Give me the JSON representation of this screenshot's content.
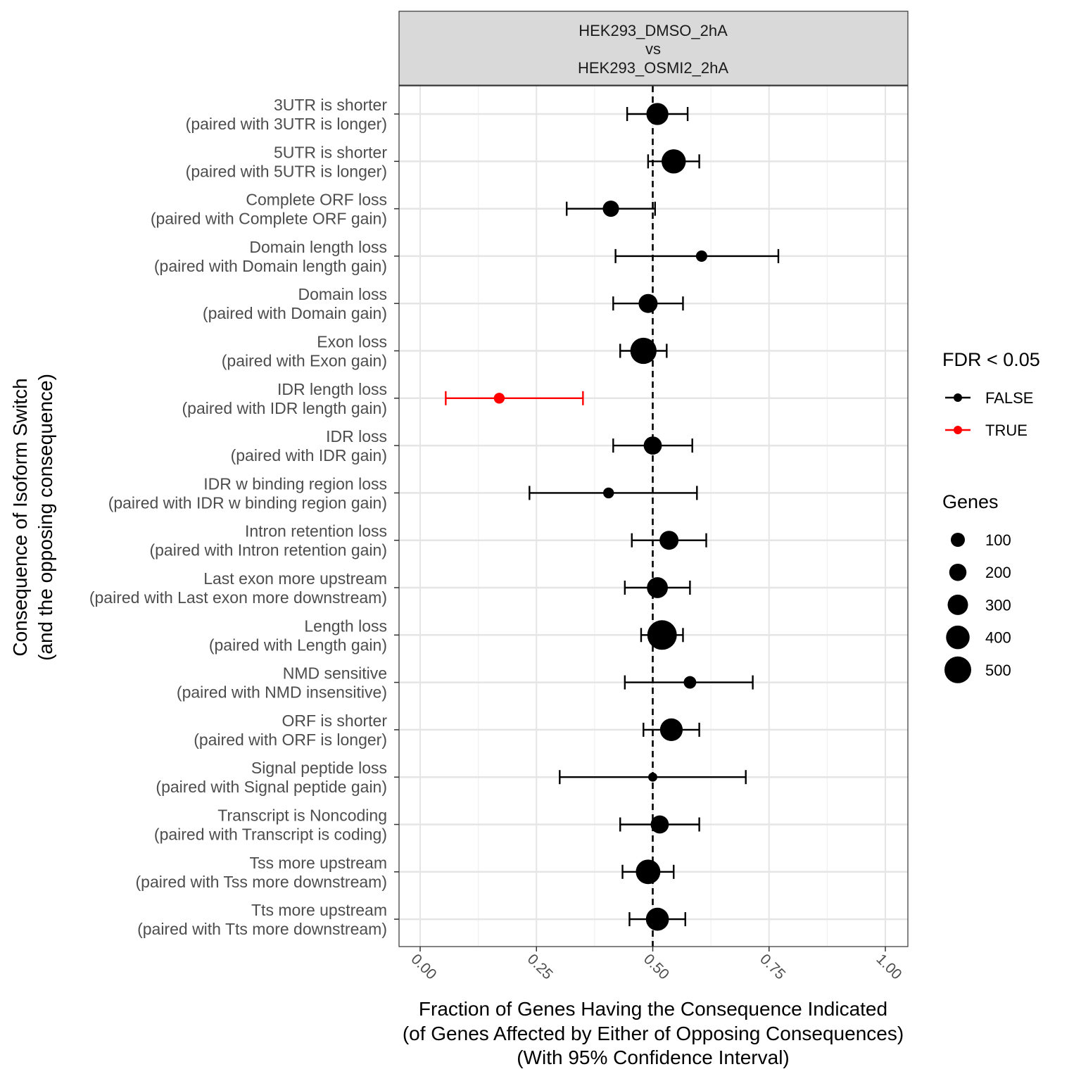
{
  "strip": {
    "line1": "HEK293_DMSO_2hA",
    "line2": "vs",
    "line3": "HEK293_OSMI2_2hA"
  },
  "x_title": {
    "line1": "Fraction of Genes Having the Consequence Indicated",
    "line2": "(of Genes Affected by Either of Opposing Consequences)",
    "line3": "(With 95% Confidence Interval)"
  },
  "y_title": {
    "line1": "Consequence of Isoform Switch",
    "line2": "(and the opposing consequence)"
  },
  "legend": {
    "fdr_title": "FDR < 0.05",
    "fdr_items": [
      {
        "label": "FALSE",
        "color": "#000000"
      },
      {
        "label": "TRUE",
        "color": "#ff0000"
      }
    ],
    "genes_title": "Genes",
    "genes_items": [
      {
        "label": "100",
        "genes": 100
      },
      {
        "label": "200",
        "genes": 200
      },
      {
        "label": "300",
        "genes": 300
      },
      {
        "label": "400",
        "genes": 400
      },
      {
        "label": "500",
        "genes": 500
      }
    ]
  },
  "chart_data": {
    "type": "scatter",
    "subtype": "point-range (forest plot)",
    "xlim": [
      0,
      1
    ],
    "x_ticks": [
      "0.00",
      "0.25",
      "0.50",
      "0.75",
      "1.00"
    ],
    "x_tick_values": [
      0,
      0.25,
      0.5,
      0.75,
      1.0
    ],
    "reference_line_x": 0.5,
    "grid": true,
    "legend_position": "right",
    "categories": [
      {
        "label": "3UTR is shorter",
        "sub": "(paired with 3UTR is longer)",
        "x": 0.51,
        "lo": 0.445,
        "hi": 0.575,
        "fdr": false,
        "genes": 250
      },
      {
        "label": "5UTR is shorter",
        "sub": "(paired with 5UTR is longer)",
        "x": 0.545,
        "lo": 0.49,
        "hi": 0.6,
        "fdr": false,
        "genes": 320
      },
      {
        "label": "Complete ORF loss",
        "sub": "(paired with Complete ORF gain)",
        "x": 0.41,
        "lo": 0.315,
        "hi": 0.505,
        "fdr": false,
        "genes": 110
      },
      {
        "label": "Domain length loss",
        "sub": "(paired with Domain length gain)",
        "x": 0.605,
        "lo": 0.42,
        "hi": 0.77,
        "fdr": false,
        "genes": 35
      },
      {
        "label": "Domain loss",
        "sub": "(paired with Domain gain)",
        "x": 0.49,
        "lo": 0.415,
        "hi": 0.565,
        "fdr": false,
        "genes": 170
      },
      {
        "label": "Exon loss",
        "sub": "(paired with Exon gain)",
        "x": 0.48,
        "lo": 0.43,
        "hi": 0.53,
        "fdr": false,
        "genes": 390
      },
      {
        "label": "IDR length loss",
        "sub": "(paired with IDR length gain)",
        "x": 0.17,
        "lo": 0.055,
        "hi": 0.35,
        "fdr": true,
        "genes": 30
      },
      {
        "label": "IDR loss",
        "sub": "(paired with IDR gain)",
        "x": 0.5,
        "lo": 0.415,
        "hi": 0.585,
        "fdr": false,
        "genes": 150
      },
      {
        "label": "IDR w binding region loss",
        "sub": "(paired with IDR w binding region gain)",
        "x": 0.405,
        "lo": 0.235,
        "hi": 0.595,
        "fdr": false,
        "genes": 30
      },
      {
        "label": "Intron retention loss",
        "sub": "(paired with Intron retention gain)",
        "x": 0.535,
        "lo": 0.455,
        "hi": 0.615,
        "fdr": false,
        "genes": 170
      },
      {
        "label": "Last exon more upstream",
        "sub": "(paired with Last exon more downstream)",
        "x": 0.51,
        "lo": 0.44,
        "hi": 0.58,
        "fdr": false,
        "genes": 220
      },
      {
        "label": "Length loss",
        "sub": "(paired with Length gain)",
        "x": 0.52,
        "lo": 0.475,
        "hi": 0.565,
        "fdr": false,
        "genes": 520
      },
      {
        "label": "NMD sensitive",
        "sub": "(paired with NMD insensitive)",
        "x": 0.58,
        "lo": 0.44,
        "hi": 0.715,
        "fdr": false,
        "genes": 50
      },
      {
        "label": "ORF is shorter",
        "sub": "(paired with ORF is longer)",
        "x": 0.54,
        "lo": 0.48,
        "hi": 0.6,
        "fdr": false,
        "genes": 270
      },
      {
        "label": "Signal peptide loss",
        "sub": "(paired with Signal peptide gain)",
        "x": 0.5,
        "lo": 0.3,
        "hi": 0.7,
        "fdr": false,
        "genes": 15
      },
      {
        "label": "Transcript is Noncoding",
        "sub": "(paired with Transcript is coding)",
        "x": 0.515,
        "lo": 0.43,
        "hi": 0.6,
        "fdr": false,
        "genes": 150
      },
      {
        "label": "Tss more upstream",
        "sub": "(paired with Tss more downstream)",
        "x": 0.49,
        "lo": 0.435,
        "hi": 0.545,
        "fdr": false,
        "genes": 330
      },
      {
        "label": "Tts more upstream",
        "sub": "(paired with Tts more downstream)",
        "x": 0.51,
        "lo": 0.45,
        "hi": 0.57,
        "fdr": false,
        "genes": 280
      }
    ]
  }
}
